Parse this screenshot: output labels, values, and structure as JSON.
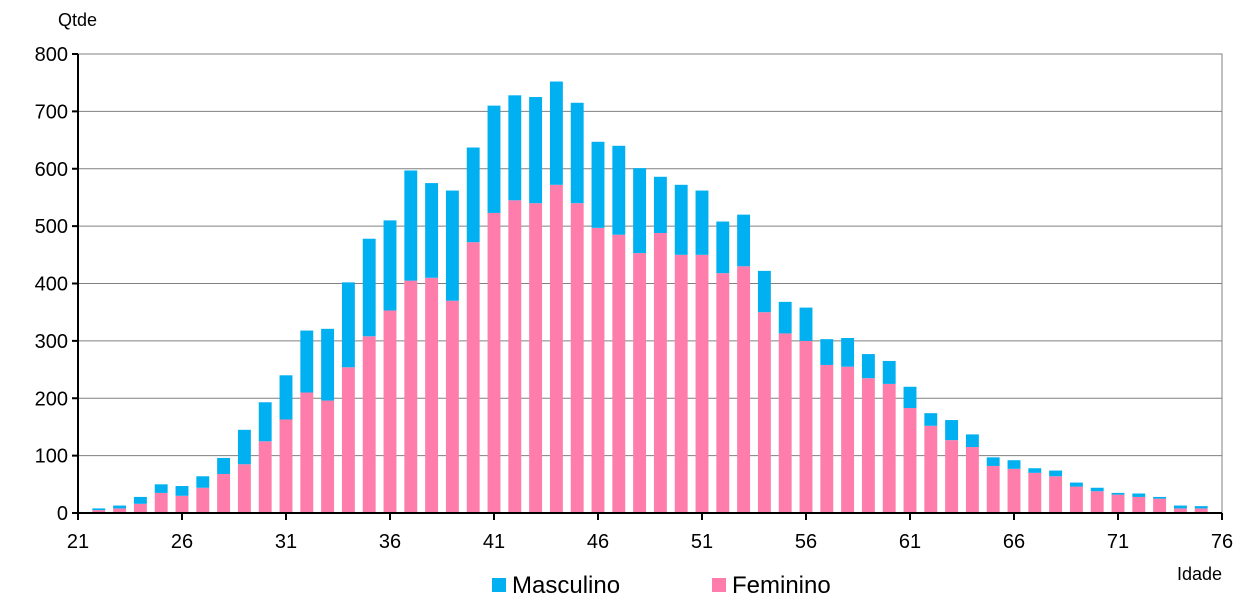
{
  "chart_data": {
    "type": "bar",
    "stacked": true,
    "ylabel": "Qtde",
    "xlabel": "Idade",
    "ylim": [
      0,
      800
    ],
    "yticks": [
      0,
      100,
      200,
      300,
      400,
      500,
      600,
      700,
      800
    ],
    "xlim": [
      21,
      76
    ],
    "xticks": [
      21,
      26,
      31,
      36,
      41,
      46,
      51,
      56,
      61,
      66,
      71,
      76
    ],
    "grid": true,
    "legend_position": "bottom",
    "ages": [
      22,
      23,
      24,
      25,
      26,
      27,
      28,
      29,
      30,
      31,
      32,
      33,
      34,
      35,
      36,
      37,
      38,
      39,
      40,
      41,
      42,
      43,
      44,
      45,
      46,
      47,
      48,
      49,
      50,
      51,
      52,
      53,
      54,
      55,
      56,
      57,
      58,
      59,
      60,
      61,
      62,
      63,
      64,
      65,
      66,
      67,
      68,
      69,
      70,
      71,
      72,
      73,
      74,
      75
    ],
    "series": [
      {
        "name": "Masculino",
        "color": "#00B0F0",
        "values": [
          3,
          5,
          12,
          15,
          17,
          20,
          28,
          60,
          68,
          77,
          108,
          125,
          148,
          170,
          157,
          192,
          165,
          192,
          165,
          187,
          183,
          185,
          180,
          175,
          150,
          155,
          148,
          98,
          122,
          112,
          90,
          90,
          72,
          55,
          58,
          45,
          50,
          42,
          40,
          37,
          22,
          35,
          22,
          15,
          15,
          8,
          10,
          7,
          6,
          3,
          6,
          3,
          5,
          4
        ]
      },
      {
        "name": "Feminino",
        "color": "#FF7DAA",
        "values": [
          5,
          8,
          16,
          35,
          30,
          44,
          68,
          85,
          125,
          163,
          210,
          196,
          254,
          308,
          353,
          405,
          410,
          370,
          472,
          523,
          545,
          540,
          572,
          540,
          497,
          485,
          453,
          488,
          450,
          450,
          418,
          430,
          350,
          313,
          300,
          258,
          255,
          235,
          225,
          183,
          152,
          127,
          115,
          82,
          77,
          70,
          64,
          46,
          38,
          32,
          28,
          25,
          8,
          8
        ]
      }
    ]
  }
}
